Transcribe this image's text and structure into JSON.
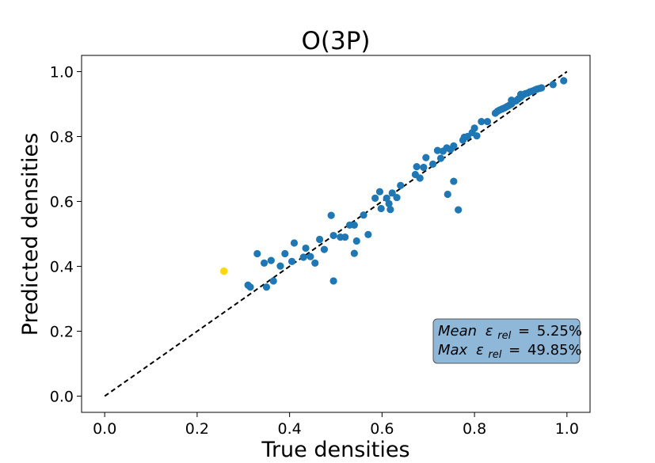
{
  "chart_data": {
    "type": "scatter",
    "title": "O(3P)",
    "xlabel": "True densities",
    "ylabel": "Predicted densities",
    "xlim": [
      -0.05,
      1.05
    ],
    "ylim": [
      -0.05,
      1.05
    ],
    "xticks": [
      "0.0",
      "0.2",
      "0.4",
      "0.6",
      "0.8",
      "1.0"
    ],
    "yticks": [
      "0.0",
      "0.2",
      "0.4",
      "0.6",
      "0.8",
      "1.0"
    ],
    "grid": false,
    "colors": {
      "points": "#1f77b4",
      "highlight": "#fcd90f",
      "reference": "#000000",
      "annotation_box": "#8fb7d8"
    },
    "reference_line": {
      "x": [
        0,
        1
      ],
      "y": [
        0,
        1
      ],
      "style": "dashed"
    },
    "annotation": {
      "mean_label": "Mean",
      "mean_value": "5.25%",
      "max_label": "Max",
      "max_value": "49.85%",
      "symbol": "ε",
      "subscript": "rel",
      "equals": "="
    },
    "highlight_point": {
      "x": 0.258,
      "y": 0.385
    },
    "points": [
      {
        "x": 0.31,
        "y": 0.342
      },
      {
        "x": 0.315,
        "y": 0.336
      },
      {
        "x": 0.33,
        "y": 0.439
      },
      {
        "x": 0.345,
        "y": 0.41
      },
      {
        "x": 0.35,
        "y": 0.336
      },
      {
        "x": 0.36,
        "y": 0.418
      },
      {
        "x": 0.365,
        "y": 0.355
      },
      {
        "x": 0.38,
        "y": 0.401
      },
      {
        "x": 0.39,
        "y": 0.439
      },
      {
        "x": 0.405,
        "y": 0.415
      },
      {
        "x": 0.41,
        "y": 0.472
      },
      {
        "x": 0.43,
        "y": 0.428
      },
      {
        "x": 0.435,
        "y": 0.456
      },
      {
        "x": 0.445,
        "y": 0.43
      },
      {
        "x": 0.455,
        "y": 0.41
      },
      {
        "x": 0.465,
        "y": 0.483
      },
      {
        "x": 0.475,
        "y": 0.452
      },
      {
        "x": 0.49,
        "y": 0.557
      },
      {
        "x": 0.495,
        "y": 0.355
      },
      {
        "x": 0.495,
        "y": 0.495
      },
      {
        "x": 0.51,
        "y": 0.49
      },
      {
        "x": 0.52,
        "y": 0.49
      },
      {
        "x": 0.53,
        "y": 0.527
      },
      {
        "x": 0.54,
        "y": 0.527
      },
      {
        "x": 0.54,
        "y": 0.44
      },
      {
        "x": 0.545,
        "y": 0.478
      },
      {
        "x": 0.56,
        "y": 0.558
      },
      {
        "x": 0.57,
        "y": 0.498
      },
      {
        "x": 0.585,
        "y": 0.61
      },
      {
        "x": 0.595,
        "y": 0.63
      },
      {
        "x": 0.598,
        "y": 0.578
      },
      {
        "x": 0.61,
        "y": 0.61
      },
      {
        "x": 0.615,
        "y": 0.593
      },
      {
        "x": 0.618,
        "y": 0.575
      },
      {
        "x": 0.622,
        "y": 0.626
      },
      {
        "x": 0.632,
        "y": 0.612
      },
      {
        "x": 0.64,
        "y": 0.649
      },
      {
        "x": 0.672,
        "y": 0.683
      },
      {
        "x": 0.675,
        "y": 0.707
      },
      {
        "x": 0.682,
        "y": 0.672
      },
      {
        "x": 0.69,
        "y": 0.705
      },
      {
        "x": 0.695,
        "y": 0.735
      },
      {
        "x": 0.71,
        "y": 0.715
      },
      {
        "x": 0.72,
        "y": 0.757
      },
      {
        "x": 0.727,
        "y": 0.733
      },
      {
        "x": 0.732,
        "y": 0.755
      },
      {
        "x": 0.74,
        "y": 0.765
      },
      {
        "x": 0.742,
        "y": 0.622
      },
      {
        "x": 0.748,
        "y": 0.76
      },
      {
        "x": 0.755,
        "y": 0.662
      },
      {
        "x": 0.755,
        "y": 0.771
      },
      {
        "x": 0.765,
        "y": 0.574
      },
      {
        "x": 0.775,
        "y": 0.789
      },
      {
        "x": 0.778,
        "y": 0.798
      },
      {
        "x": 0.785,
        "y": 0.8
      },
      {
        "x": 0.795,
        "y": 0.812
      },
      {
        "x": 0.8,
        "y": 0.826
      },
      {
        "x": 0.805,
        "y": 0.802
      },
      {
        "x": 0.815,
        "y": 0.846
      },
      {
        "x": 0.828,
        "y": 0.846
      },
      {
        "x": 0.845,
        "y": 0.872
      },
      {
        "x": 0.85,
        "y": 0.878
      },
      {
        "x": 0.855,
        "y": 0.882
      },
      {
        "x": 0.86,
        "y": 0.885
      },
      {
        "x": 0.865,
        "y": 0.888
      },
      {
        "x": 0.87,
        "y": 0.892
      },
      {
        "x": 0.875,
        "y": 0.896
      },
      {
        "x": 0.88,
        "y": 0.9
      },
      {
        "x": 0.885,
        "y": 0.908
      },
      {
        "x": 0.89,
        "y": 0.91
      },
      {
        "x": 0.895,
        "y": 0.916
      },
      {
        "x": 0.9,
        "y": 0.921
      },
      {
        "x": 0.905,
        "y": 0.928
      },
      {
        "x": 0.91,
        "y": 0.932
      },
      {
        "x": 0.915,
        "y": 0.934
      },
      {
        "x": 0.92,
        "y": 0.938
      },
      {
        "x": 0.925,
        "y": 0.94
      },
      {
        "x": 0.93,
        "y": 0.943
      },
      {
        "x": 0.935,
        "y": 0.946
      },
      {
        "x": 0.94,
        "y": 0.948
      },
      {
        "x": 0.945,
        "y": 0.95
      },
      {
        "x": 0.97,
        "y": 0.96
      },
      {
        "x": 0.993,
        "y": 0.972
      },
      {
        "x": 0.88,
        "y": 0.912
      },
      {
        "x": 0.9,
        "y": 0.93
      }
    ]
  }
}
